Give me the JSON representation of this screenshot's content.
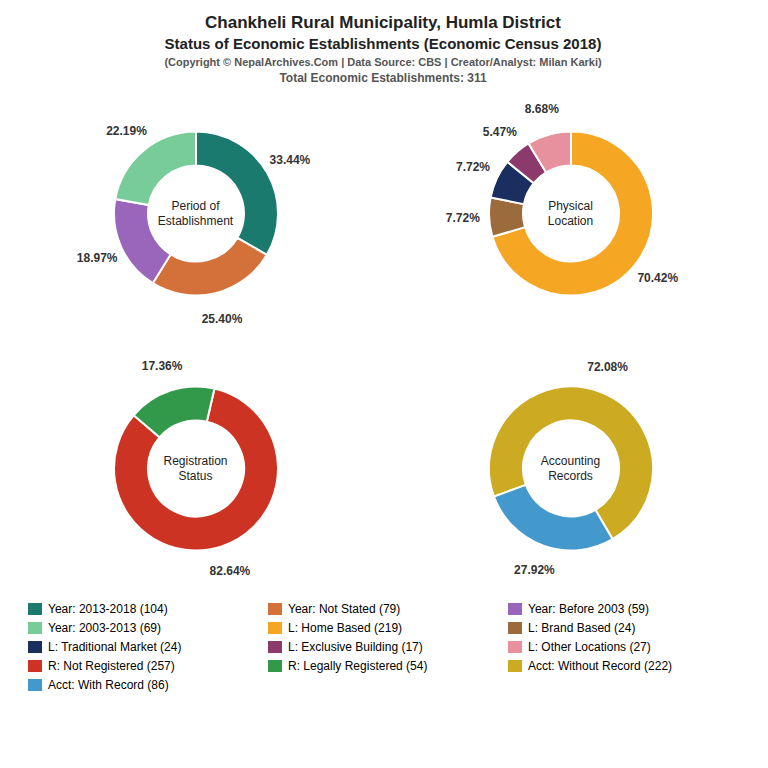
{
  "title": "Chankheli Rural Municipality, Humla District\nStatus of Economic Establishments (Economic Census 2018)",
  "subtitle": "(Copyright © NepalArchives.Com | Data Source: CBS | Creator/Analyst: Milan Karki)\nTotal Economic Establishments: 311",
  "chart_data": [
    {
      "type": "pie",
      "title": "Period of\nEstablishment",
      "categories": [
        "Year: 2013-2018 (104)",
        "Year: Not Stated (79)",
        "Year: Before 2003 (59)",
        "Year: 2003-2013 (69)"
      ],
      "values": [
        33.44,
        25.4,
        18.97,
        22.19
      ],
      "value_labels": [
        "33.44%",
        "25.40%",
        "18.97%",
        "22.19%"
      ],
      "colors": [
        "#1a7a6e",
        "#d4713a",
        "#9966bb",
        "#77cc99"
      ],
      "data_labels": true,
      "legend": "bottom"
    },
    {
      "type": "pie",
      "title": "Physical\nLocation",
      "categories": [
        "L: Home Based (219)",
        "L: Brand Based (24)",
        "L: Traditional Market (24)",
        "L: Exclusive Building (17)",
        "L: Other Locations (27)"
      ],
      "values": [
        70.42,
        7.72,
        7.72,
        5.47,
        8.68
      ],
      "value_labels": [
        "70.42%",
        "7.72%",
        "7.72%",
        "5.47%",
        "8.68%"
      ],
      "colors": [
        "#f5a623",
        "#9c6b3c",
        "#1a2f5f",
        "#8b3a6b",
        "#e8919e"
      ],
      "data_labels": true,
      "legend": "bottom"
    },
    {
      "type": "pie",
      "title": "Registration\nStatus",
      "categories": [
        "R: Not Registered (257)",
        "R: Legally Registered (54)"
      ],
      "values": [
        82.64,
        17.36
      ],
      "value_labels": [
        "82.64%",
        "17.36%"
      ],
      "colors": [
        "#cc3322",
        "#33994a"
      ],
      "data_labels": true,
      "legend": "bottom"
    },
    {
      "type": "pie",
      "title": "Accounting\nRecords",
      "categories": [
        "Acct: Without Record (222)",
        "Acct: With Record (86)"
      ],
      "values": [
        72.08,
        27.92
      ],
      "value_labels": [
        "72.08%",
        "27.92%"
      ],
      "colors": [
        "#ccaa22",
        "#4499cc"
      ],
      "data_labels": true,
      "legend": "bottom"
    }
  ]
}
